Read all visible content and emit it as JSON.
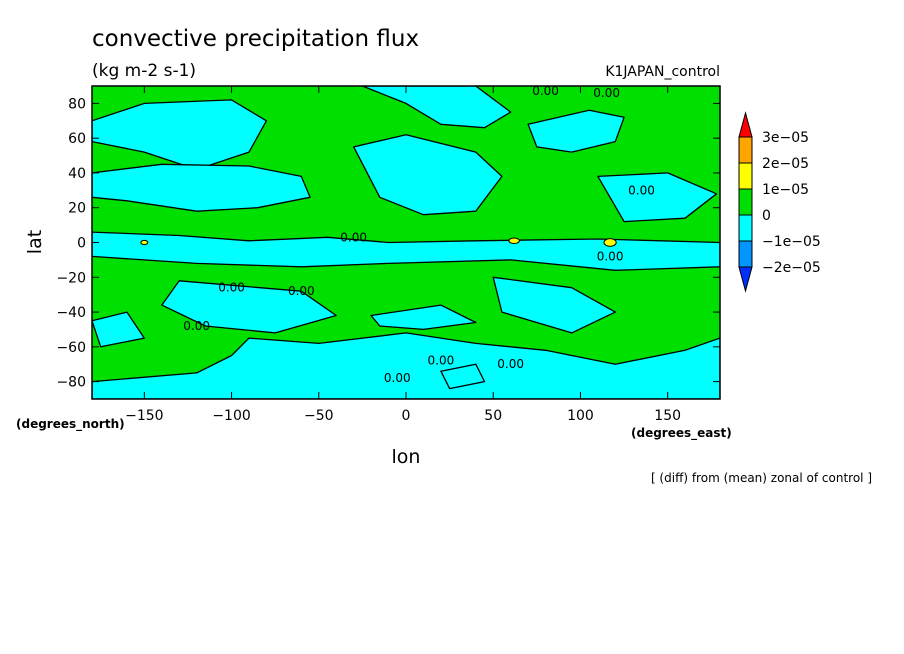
{
  "chart_data": {
    "type": "heatmap",
    "title": "convective precipitation flux",
    "units": "(kg m-2 s-1)",
    "dataset": "K1JAPAN_control",
    "xlabel": "lon",
    "ylabel": "lat",
    "x_unit_label": "(degrees_east)",
    "y_unit_label": "(degrees_north)",
    "xlim": [
      -180,
      180
    ],
    "ylim": [
      -90,
      90
    ],
    "x_ticks": [
      -150,
      -100,
      -50,
      0,
      50,
      100,
      150
    ],
    "y_ticks": [
      80,
      60,
      40,
      20,
      0,
      -20,
      -40,
      -60,
      -80
    ],
    "x_tick_labels": [
      "−150",
      "−100",
      "−50",
      "0",
      "50",
      "100",
      "150"
    ],
    "y_tick_labels": [
      "80",
      "60",
      "40",
      "20",
      "0",
      "−20",
      "−40",
      "−60",
      "−80"
    ],
    "contour_label": "0.00",
    "footer": "[ (diff) from (mean) zonal of control ]",
    "colorbar": {
      "levels": [
        "3e−05",
        "2e−05",
        "1e−05",
        "0",
        "−1e−05",
        "−2e−05"
      ],
      "colors": [
        "#ff0000",
        "#ffa500",
        "#ffff00",
        "#00e000",
        "#00ffff",
        "#0095ff",
        "#0030ff"
      ]
    }
  }
}
